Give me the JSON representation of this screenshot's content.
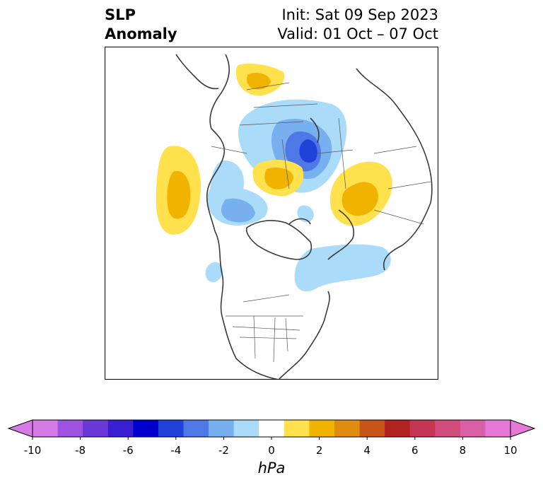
{
  "title": {
    "left_line1": "SLP",
    "left_line2": "Anomaly",
    "right_line1": "Init: Sat 09 Sep 2023",
    "right_line2": "Valid: 01 Oct – 07 Oct"
  },
  "colorbar": {
    "unit": "hPa",
    "extend": "both",
    "min": -10,
    "max": 10,
    "levels": [
      -10,
      -9,
      -8,
      -7,
      -6,
      -5,
      -4,
      -3,
      -2,
      -1,
      1,
      2,
      3,
      4,
      5,
      6,
      7,
      8,
      9,
      10
    ],
    "colors": [
      "#d67ae6",
      "#9e52e0",
      "#6b38d8",
      "#3a1fd0",
      "#0000cc",
      "#2142d9",
      "#4d78e6",
      "#78afef",
      "#aadcfa",
      "#ffffff",
      "#ffe14d",
      "#f0b400",
      "#e08c10",
      "#c85518",
      "#b22222",
      "#c43654",
      "#d04d7e",
      "#d960a6",
      "#e678d6"
    ],
    "under_color": "#d67ae6",
    "over_color": "#e678d6",
    "tick_labels": [
      "-10",
      "-8",
      "-6",
      "-4",
      "-2",
      "0",
      "2",
      "4",
      "6",
      "8",
      "10"
    ]
  },
  "map": {
    "projection": "north-polar-stereographic",
    "region": "Northern Hemisphere (North America, Arctic, Eurasia)",
    "anomalies": [
      {
        "region": "Northwest Russia / Scandinavia",
        "sign": "negative",
        "min_value_hPa": -5
      },
      {
        "region": "Gulf of Alaska / NE Pacific",
        "sign": "positive",
        "max_value_hPa": 2
      },
      {
        "region": "Central Siberia",
        "sign": "positive",
        "max_value_hPa": 2
      },
      {
        "region": "Northern Canada / Arctic Archipelago",
        "sign": "negative",
        "min_value_hPa": -3
      },
      {
        "region": "Northern Europe / Norwegian Sea",
        "sign": "positive",
        "max_value_hPa": 2
      },
      {
        "region": "North Atlantic / Labrador",
        "sign": "negative",
        "min_value_hPa": -2
      },
      {
        "region": "Northeast Asia",
        "sign": "positive",
        "max_value_hPa": 2
      }
    ]
  }
}
